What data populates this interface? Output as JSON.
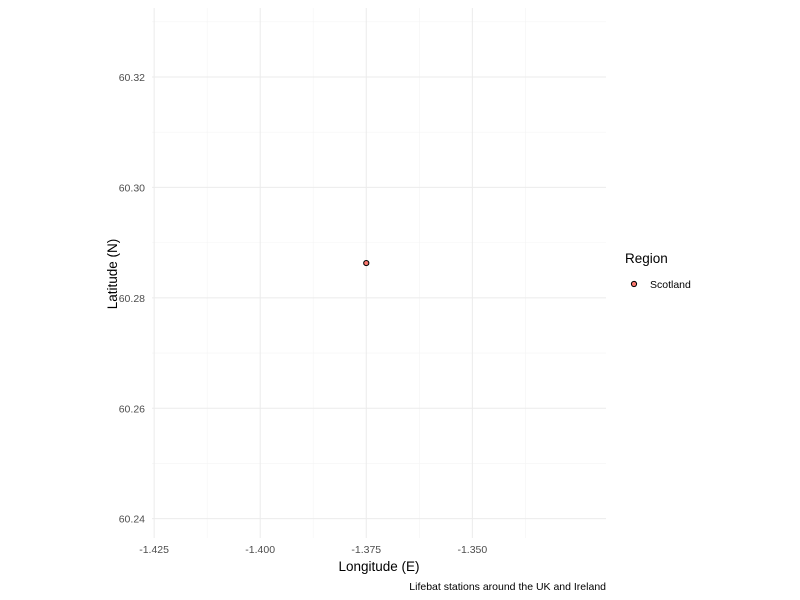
{
  "chart_data": {
    "type": "scatter",
    "title": "",
    "caption": "Lifebat stations around the UK and Ireland",
    "xlabel": "Longitude (E)",
    "ylabel": "Latitude (N)",
    "xlim": [
      -1.4255,
      -1.3185
    ],
    "ylim": [
      60.2365,
      60.3325
    ],
    "x_ticks": [
      -1.425,
      -1.4,
      -1.375,
      -1.35
    ],
    "x_tick_labels": [
      "-1.425",
      "-1.400",
      "-1.375",
      "-1.350"
    ],
    "y_ticks": [
      60.24,
      60.26,
      60.28,
      60.3,
      60.32
    ],
    "y_tick_labels": [
      "60.24",
      "60.26",
      "60.28",
      "60.30",
      "60.32"
    ],
    "grid": true,
    "legend": {
      "title": "Region",
      "placement": "right",
      "entries": [
        {
          "label": "Scotland",
          "color": "#f8766d"
        }
      ]
    },
    "series": [
      {
        "name": "Scotland",
        "color": "#f8766d",
        "points": [
          {
            "x": -1.375,
            "y": 60.2863
          }
        ]
      }
    ]
  }
}
